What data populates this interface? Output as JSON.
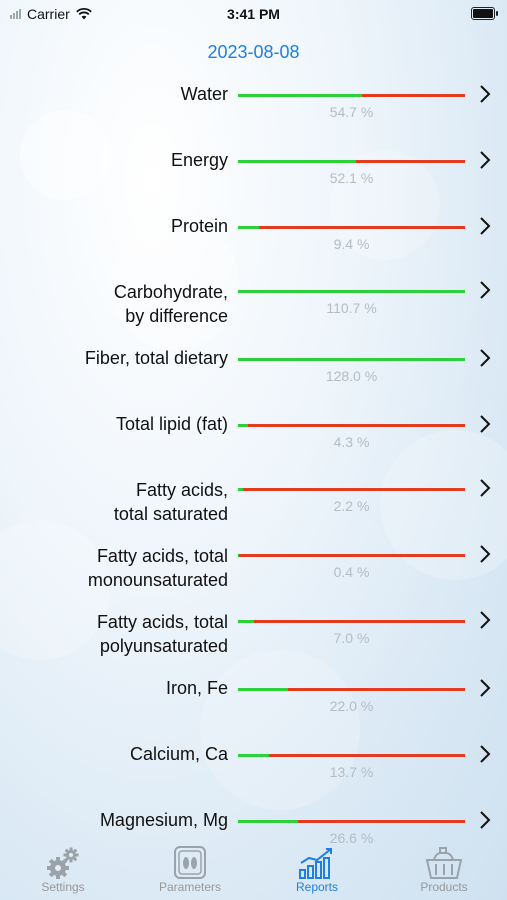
{
  "status_bar": {
    "carrier": "Carrier",
    "time": "3:41 PM"
  },
  "date": "2023-08-08",
  "nutrients": [
    {
      "lines": [
        "Water"
      ],
      "percent_text": "54.7 %",
      "fill": 0.547
    },
    {
      "lines": [
        "Energy"
      ],
      "percent_text": "52.1 %",
      "fill": 0.521
    },
    {
      "lines": [
        "Protein"
      ],
      "percent_text": "9.4 %",
      "fill": 0.094
    },
    {
      "lines": [
        "Carbohydrate,",
        "by difference"
      ],
      "percent_text": "110.7 %",
      "fill": 1.0
    },
    {
      "lines": [
        "Fiber, total dietary"
      ],
      "percent_text": "128.0 %",
      "fill": 1.0
    },
    {
      "lines": [
        "Total lipid (fat)"
      ],
      "percent_text": "4.3 %",
      "fill": 0.043
    },
    {
      "lines": [
        "Fatty acids,",
        "total saturated"
      ],
      "percent_text": "2.2 %",
      "fill": 0.022
    },
    {
      "lines": [
        "Fatty acids, total",
        "monounsaturated"
      ],
      "percent_text": "0.4 %",
      "fill": 0.004
    },
    {
      "lines": [
        "Fatty acids, total",
        "polyunsaturated"
      ],
      "percent_text": "7.0 %",
      "fill": 0.07
    },
    {
      "lines": [
        "Iron, Fe"
      ],
      "percent_text": "22.0 %",
      "fill": 0.22
    },
    {
      "lines": [
        "Calcium, Ca"
      ],
      "percent_text": "13.7 %",
      "fill": 0.137
    },
    {
      "lines": [
        "Magnesium, Mg"
      ],
      "percent_text": "26.6 %",
      "fill": 0.266
    }
  ],
  "colors": {
    "accent": "#1e7fdf",
    "good": "#2ed03a",
    "bad": "#e33b1f"
  },
  "tabs": [
    {
      "label": "Settings",
      "icon": "gears-icon",
      "active": false
    },
    {
      "label": "Parameters",
      "icon": "scale-icon",
      "active": false
    },
    {
      "label": "Reports",
      "icon": "chart-icon",
      "active": true
    },
    {
      "label": "Products",
      "icon": "basket-icon",
      "active": false
    }
  ]
}
